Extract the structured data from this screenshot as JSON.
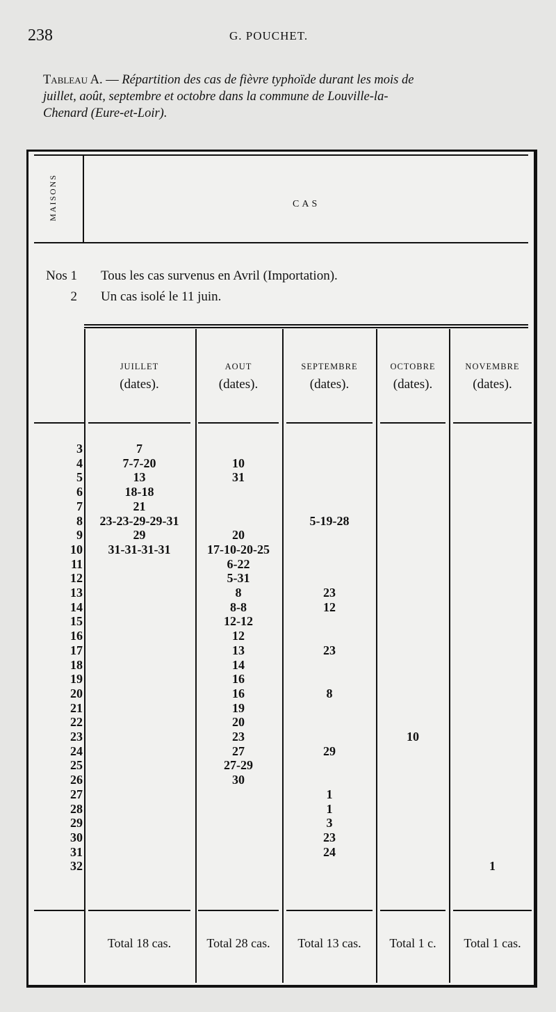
{
  "header": {
    "page_number": "238",
    "running_head": "G. POUCHET."
  },
  "caption": {
    "label": "Tableau A. —",
    "text_line1": "Répartition des cas de fièvre typhoïde durant les mois de",
    "text_line2": "juillet, août, septembre et octobre dans la commune de Louville-la-",
    "text_line3": "Chenard (Eure-et-Loir)."
  },
  "table": {
    "maisons_header": "MAISONS",
    "cas_header": "CAS",
    "notes": [
      {
        "maison": "Nos 1",
        "text": "Tous les cas survenus en Avril (Importation)."
      },
      {
        "maison": "2",
        "text": "Un cas isolé le 11 juin."
      }
    ],
    "months": [
      {
        "name": "JUILLET",
        "sub": "(dates)."
      },
      {
        "name": "AOUT",
        "sub": "(dates)."
      },
      {
        "name": "SEPTEMBRE",
        "sub": "(dates)."
      },
      {
        "name": "OCTOBRE",
        "sub": "(dates)."
      },
      {
        "name": "NOVEMBRE",
        "sub": "(dates)."
      }
    ],
    "rows": [
      {
        "maison": "3",
        "cols": [
          "7",
          "",
          "",
          "",
          ""
        ]
      },
      {
        "maison": "4",
        "cols": [
          "7-7-20",
          "10",
          "",
          "",
          ""
        ]
      },
      {
        "maison": "5",
        "cols": [
          "13",
          "31",
          "",
          "",
          ""
        ]
      },
      {
        "maison": "6",
        "cols": [
          "18-18",
          "",
          "",
          "",
          ""
        ]
      },
      {
        "maison": "7",
        "cols": [
          "21",
          "",
          "",
          "",
          ""
        ]
      },
      {
        "maison": "8",
        "cols": [
          "23-23-29-29-31",
          "",
          "5-19-28",
          "",
          ""
        ]
      },
      {
        "maison": "9",
        "cols": [
          "29",
          "20",
          "",
          "",
          ""
        ]
      },
      {
        "maison": "10",
        "cols": [
          "31-31-31-31",
          "17-10-20-25",
          "",
          "",
          ""
        ]
      },
      {
        "maison": "11",
        "cols": [
          "",
          "6-22",
          "",
          "",
          ""
        ]
      },
      {
        "maison": "12",
        "cols": [
          "",
          "5-31",
          "",
          "",
          ""
        ]
      },
      {
        "maison": "13",
        "cols": [
          "",
          "8",
          "23",
          "",
          ""
        ]
      },
      {
        "maison": "14",
        "cols": [
          "",
          "8-8",
          "12",
          "",
          ""
        ]
      },
      {
        "maison": "15",
        "cols": [
          "",
          "12-12",
          "",
          "",
          ""
        ]
      },
      {
        "maison": "16",
        "cols": [
          "",
          "12",
          "",
          "",
          ""
        ]
      },
      {
        "maison": "17",
        "cols": [
          "",
          "13",
          "23",
          "",
          ""
        ]
      },
      {
        "maison": "18",
        "cols": [
          "",
          "14",
          "",
          "",
          ""
        ]
      },
      {
        "maison": "19",
        "cols": [
          "",
          "16",
          "",
          "",
          ""
        ]
      },
      {
        "maison": "20",
        "cols": [
          "",
          "16",
          "8",
          "",
          ""
        ]
      },
      {
        "maison": "21",
        "cols": [
          "",
          "19",
          "",
          "",
          ""
        ]
      },
      {
        "maison": "22",
        "cols": [
          "",
          "20",
          "",
          "",
          ""
        ]
      },
      {
        "maison": "23",
        "cols": [
          "",
          "23",
          "",
          "10",
          ""
        ]
      },
      {
        "maison": "24",
        "cols": [
          "",
          "27",
          "29",
          "",
          ""
        ]
      },
      {
        "maison": "25",
        "cols": [
          "",
          "27-29",
          "",
          "",
          ""
        ]
      },
      {
        "maison": "26",
        "cols": [
          "",
          "30",
          "",
          "",
          ""
        ]
      },
      {
        "maison": "27",
        "cols": [
          "",
          "",
          "1",
          "",
          ""
        ]
      },
      {
        "maison": "28",
        "cols": [
          "",
          "",
          "1",
          "",
          ""
        ]
      },
      {
        "maison": "29",
        "cols": [
          "",
          "",
          "3",
          "",
          ""
        ]
      },
      {
        "maison": "30",
        "cols": [
          "",
          "",
          "23",
          "",
          ""
        ]
      },
      {
        "maison": "31",
        "cols": [
          "",
          "",
          "24",
          "",
          ""
        ]
      },
      {
        "maison": "32",
        "cols": [
          "",
          "",
          "",
          "",
          "1"
        ]
      }
    ],
    "totals": [
      "Total 18 cas.",
      "Total 28 cas.",
      "Total 13 cas.",
      "Total 1 c.",
      "Total 1 cas."
    ]
  }
}
